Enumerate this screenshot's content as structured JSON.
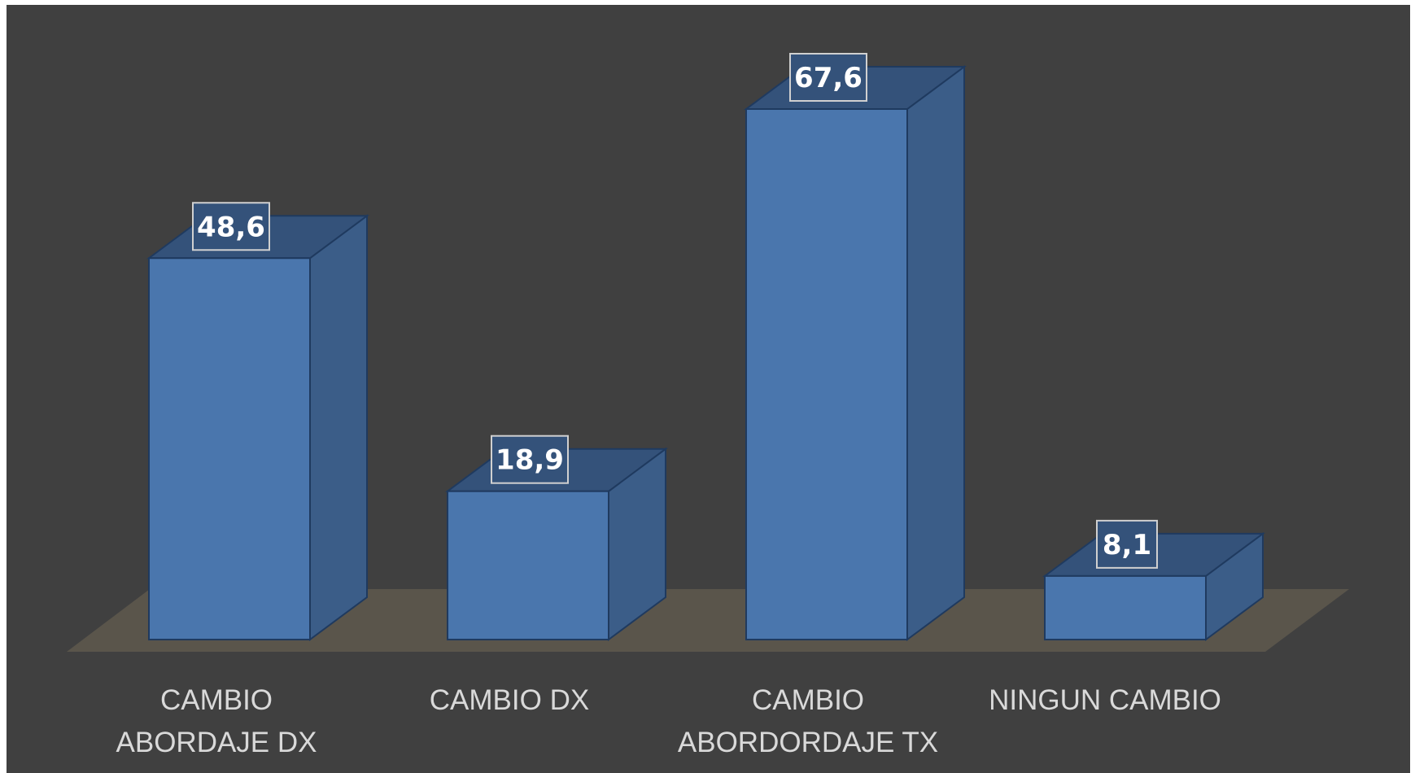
{
  "chart_data": {
    "type": "bar",
    "categories": [
      [
        "CAMBIO",
        "ABORDAJE DX"
      ],
      [
        "CAMBIO DX"
      ],
      [
        "CAMBIO",
        "ABORDORDAJE TX"
      ],
      [
        "NINGUN CAMBIO"
      ]
    ],
    "values": [
      48.6,
      18.9,
      67.6,
      8.1
    ],
    "data_labels": [
      "48,6",
      "18,9",
      "67,6",
      "8,1"
    ],
    "ylim": [
      0,
      67.6
    ],
    "grid": false,
    "legend": "none",
    "style": "3d-column",
    "colors": {
      "background": "#404040",
      "bar_front": "#4a76ad",
      "bar_side": "#3b5d88",
      "bar_top": "#34527a",
      "bar_edge": "#1f3a5f",
      "floor": "#5a554b",
      "category_text": "#d9d9d9",
      "label_text": "#ffffff",
      "label_border": "#d0d0d0"
    }
  }
}
